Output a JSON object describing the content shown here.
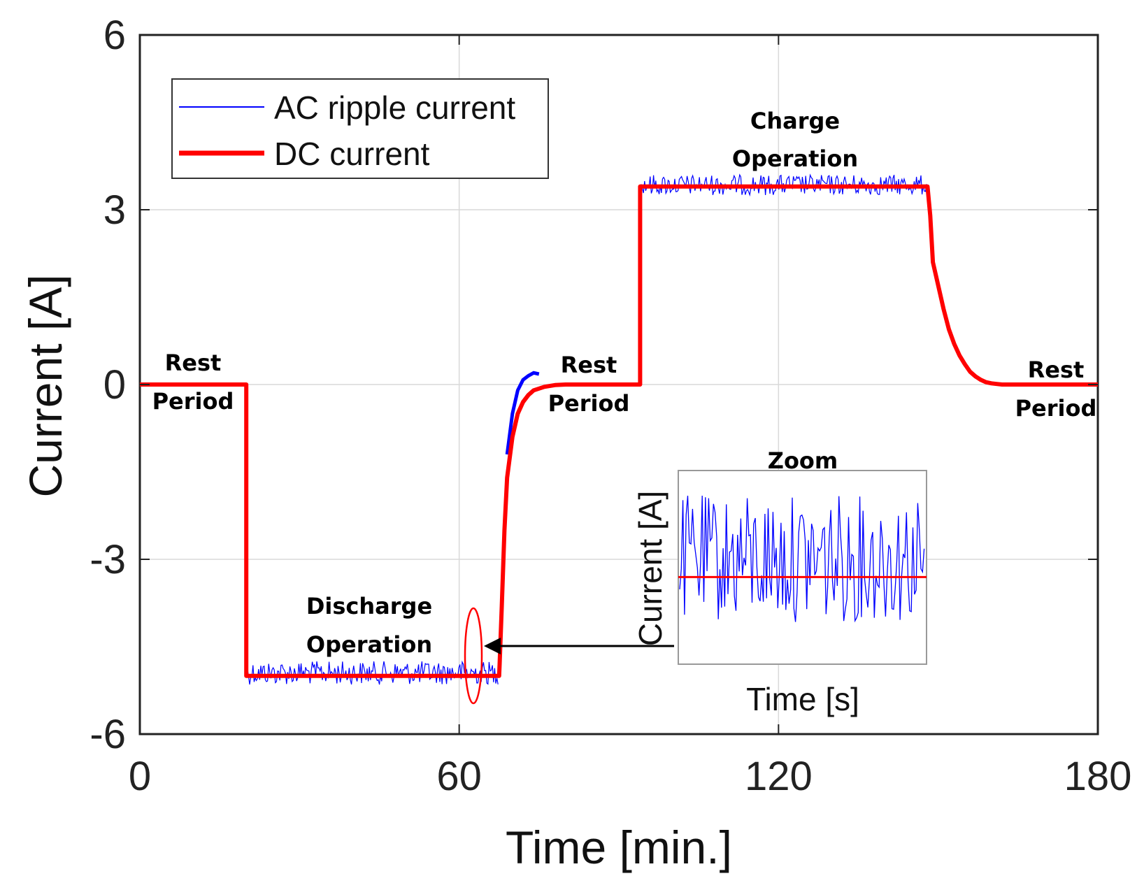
{
  "chart_data": {
    "type": "line",
    "title": "",
    "xlabel": "Time [min.]",
    "ylabel": "Current [A]",
    "xlim": [
      0,
      180
    ],
    "ylim": [
      -6,
      6
    ],
    "xticks": [
      0,
      60,
      120,
      180
    ],
    "xtick_labels": [
      "0",
      "60",
      "120",
      "180"
    ],
    "yticks": [
      -6,
      -3,
      0,
      3,
      6
    ],
    "ytick_labels": [
      "-6",
      "-3",
      "0",
      "3",
      "6"
    ],
    "grid": true,
    "legend_position": "top-left",
    "series": [
      {
        "name": "DC current",
        "color": "#ff0000",
        "x": [
          0,
          20,
          20,
          67.5,
          67.6,
          68,
          68.5,
          69,
          70,
          71,
          72,
          73,
          74,
          76,
          78,
          80,
          94,
          94,
          148,
          148.5,
          149,
          150,
          151,
          152,
          153,
          154,
          155,
          156,
          157,
          158,
          159,
          160,
          161,
          162,
          180
        ],
        "values": [
          0,
          0,
          -5,
          -5,
          -4.8,
          -3.8,
          -2.5,
          -1.6,
          -0.9,
          -0.5,
          -0.3,
          -0.18,
          -0.1,
          -0.04,
          -0.01,
          0,
          0,
          3.4,
          3.4,
          2.9,
          2.1,
          1.7,
          1.3,
          0.95,
          0.7,
          0.5,
          0.35,
          0.22,
          0.14,
          0.08,
          0.04,
          0.02,
          0.01,
          0,
          0
        ]
      },
      {
        "name": "AC ripple current",
        "color": "#0000ff",
        "segments": [
          {
            "x_start": 20,
            "x_end": 67.5,
            "center": -5,
            "ripple_range": [
              -5.15,
              -4.75
            ]
          },
          {
            "x_start": 94,
            "x_end": 148,
            "center": 3.4,
            "ripple_range": [
              3.25,
              3.6
            ]
          }
        ],
        "overshoot": {
          "x": [
            69,
            70,
            71,
            72,
            73,
            74,
            75
          ],
          "values": [
            -1.2,
            -0.5,
            -0.1,
            0.08,
            0.15,
            0.2,
            0.18
          ]
        }
      }
    ],
    "annotations": [
      {
        "id": "rest1",
        "line1": "Rest",
        "line2": "Period"
      },
      {
        "id": "rest2",
        "line1": "Rest",
        "line2": "Period"
      },
      {
        "id": "rest3",
        "line1": "Rest",
        "line2": "Period"
      },
      {
        "id": "discharge",
        "line1": "Discharge",
        "line2": "Operation"
      },
      {
        "id": "charge",
        "line1": "Charge",
        "line2": "Operation"
      }
    ],
    "inset": {
      "title": "Zoom",
      "xlabel": "Time [s]",
      "ylabel": "Current [A]",
      "dc_level_fraction": 0.55,
      "ripple_color": "#0000ff",
      "dc_color": "#ff0000"
    }
  },
  "colors": {
    "axis": "#222222",
    "grid": "#d9d9d9",
    "dc": "#ff0000",
    "ac": "#0000ff",
    "highlight": "#ff0000"
  }
}
